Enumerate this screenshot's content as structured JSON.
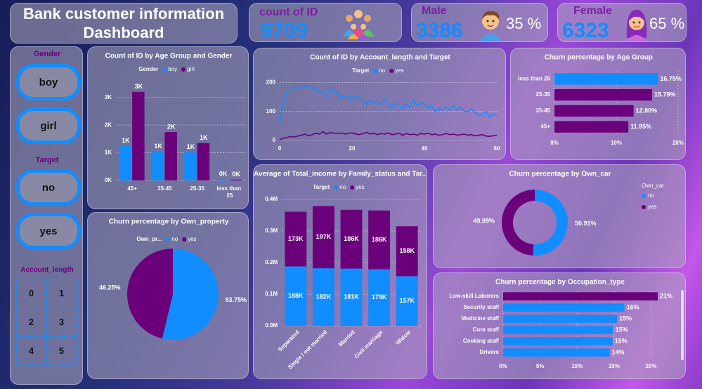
{
  "header": {
    "title": "Bank customer information Dashboard"
  },
  "kpis": [
    {
      "label": "count of ID",
      "value": 9709
    },
    {
      "label": "Male",
      "value": 3386,
      "pct": "35 %"
    },
    {
      "label": "Female",
      "value": 6323,
      "pct": "65 %"
    }
  ],
  "slicers": [
    {
      "title": "Gender",
      "options": [
        "boy",
        "girl"
      ]
    },
    {
      "title": "Target",
      "options": [
        "no",
        "yes"
      ]
    },
    {
      "title": "Account_length",
      "options": [
        "0",
        "1",
        "2",
        "3",
        "4",
        "5"
      ]
    }
  ],
  "chart_data": [
    {
      "type": "bar",
      "title": "Count of ID by Age Group and Gender",
      "legend_title": "Gender",
      "categories": [
        "45+",
        "35-45",
        "25-35",
        "less than 25"
      ],
      "series": [
        {
          "name": "boy",
          "color": "#118dff",
          "values": [
            1250,
            1050,
            1020,
            50
          ],
          "value_labels": [
            "1K",
            "1K",
            "1K",
            "0K"
          ]
        },
        {
          "name": "girl",
          "color": "#6b007b",
          "values": [
            3200,
            1750,
            1350,
            30
          ],
          "value_labels": [
            "3K",
            "2K",
            "1K",
            "0K"
          ]
        }
      ],
      "ylim": [
        0,
        3500
      ],
      "yticks": [
        {
          "value": 0,
          "label": "0K"
        },
        {
          "value": 1000,
          "label": "1K"
        },
        {
          "value": 2000,
          "label": "2K"
        },
        {
          "value": 3000,
          "label": "3K"
        }
      ],
      "grid": true
    },
    {
      "type": "line",
      "title": "Count of ID by Account_length and Target",
      "legend_title": "Target",
      "x": [
        0,
        1,
        2,
        3,
        4,
        5,
        6,
        7,
        8,
        9,
        10,
        11,
        12,
        13,
        14,
        15,
        16,
        17,
        18,
        19,
        20,
        21,
        22,
        23,
        24,
        25,
        26,
        27,
        28,
        29,
        30,
        31,
        32,
        33,
        34,
        35,
        36,
        37,
        38,
        39,
        40,
        41,
        42,
        43,
        44,
        45,
        46,
        47,
        48,
        49,
        50,
        51,
        52,
        53,
        54,
        55,
        56,
        57,
        58,
        59,
        60
      ],
      "series": [
        {
          "name": "no",
          "color": "#118dff",
          "values": [
            60,
            130,
            165,
            175,
            185,
            180,
            190,
            185,
            190,
            175,
            185,
            165,
            170,
            150,
            180,
            165,
            165,
            150,
            155,
            150,
            140,
            155,
            145,
            135,
            125,
            140,
            130,
            135,
            125,
            145,
            125,
            115,
            130,
            120,
            110,
            125,
            115,
            140,
            120,
            130,
            125,
            110,
            120,
            100,
            110,
            105,
            115,
            105,
            120,
            105,
            115,
            100,
            100,
            110,
            95,
            85,
            90,
            100,
            80,
            90,
            85
          ]
        },
        {
          "name": "yes",
          "color": "#6b007b",
          "values": [
            2,
            8,
            10,
            14,
            12,
            15,
            18,
            22,
            16,
            20,
            25,
            22,
            30,
            22,
            28,
            25,
            24,
            26,
            22,
            25,
            26,
            22,
            20,
            24,
            28,
            22,
            25,
            20,
            24,
            22,
            26,
            20,
            22,
            25,
            18,
            24,
            20,
            22,
            18,
            24,
            22,
            25,
            20,
            22,
            18,
            20,
            24,
            20,
            22,
            18,
            20,
            22,
            18,
            20,
            16,
            18,
            20,
            15,
            14,
            16,
            18
          ]
        }
      ],
      "xlim": [
        0,
        60
      ],
      "xticks": [
        0,
        20,
        40,
        60
      ],
      "ylim": [
        0,
        230
      ],
      "yticks": [
        0,
        100,
        200
      ],
      "grid": true
    },
    {
      "type": "hbar",
      "title": "Churn percentage by Age Group",
      "categories": [
        "less than 25",
        "25-35",
        "35-45",
        "45+"
      ],
      "values": [
        16.75,
        15.79,
        12.8,
        11.95
      ],
      "value_labels": [
        "16.75%",
        "15.79%",
        "12.80%",
        "11.95%"
      ],
      "colors": [
        "#118dff",
        "#6b007b",
        "#6b007b",
        "#6b007b"
      ],
      "xlim": [
        0,
        20
      ],
      "xticks": [
        {
          "value": 0,
          "label": "0%"
        },
        {
          "value": 10,
          "label": "10%"
        },
        {
          "value": 20,
          "label": "20%"
        }
      ],
      "grid": true
    },
    {
      "type": "stacked_bar",
      "title": "Average of Total_income by Family_status and Tar...",
      "legend_title": "Target",
      "categories": [
        "Separated",
        "Single / not married",
        "Married",
        "Civil marriage",
        "Widow"
      ],
      "series": [
        {
          "name": "no",
          "color": "#118dff",
          "values": [
            188000,
            182000,
            181000,
            179000,
            157000
          ],
          "value_labels": [
            "188K",
            "182K",
            "181K",
            "179K",
            "157K"
          ]
        },
        {
          "name": "yes",
          "color": "#6b007b",
          "values": [
            173000,
            197000,
            186000,
            186000,
            158000
          ],
          "value_labels": [
            "173K",
            "197K",
            "186K",
            "186K",
            "158K"
          ]
        }
      ],
      "ylim": [
        0,
        400000
      ],
      "yticks": [
        {
          "value": 0,
          "label": "0.0M"
        },
        {
          "value": 100000,
          "label": "0.1M"
        },
        {
          "value": 200000,
          "label": "0.2M"
        },
        {
          "value": 300000,
          "label": "0.3M"
        },
        {
          "value": 400000,
          "label": "0.4M"
        }
      ],
      "grid": true
    },
    {
      "type": "donut",
      "title": "Churn percentage by Own_car",
      "legend_title": "Own_car",
      "categories": [
        "no",
        "yes"
      ],
      "values": [
        50.91,
        49.09
      ],
      "value_labels": [
        "50.91%",
        "49.09%"
      ],
      "colors": [
        "#118dff",
        "#6b007b"
      ]
    },
    {
      "type": "pie",
      "title": "Churn percentage by Own_property",
      "legend_title": "Own_pr...",
      "categories": [
        "no",
        "yes"
      ],
      "values": [
        53.75,
        46.25
      ],
      "value_labels": [
        "53.75%",
        "46.25%"
      ],
      "colors": [
        "#118dff",
        "#6b007b"
      ]
    },
    {
      "type": "hbar",
      "title": "Churn percentage by Occupation_type",
      "categories": [
        "Low-skill Laborers",
        "Security staff",
        "Medicine staff",
        "Core staff",
        "Cooking staff",
        "Drivers"
      ],
      "values": [
        20.9,
        16.4,
        15.4,
        14.9,
        14.8,
        14.4
      ],
      "value_labels": [
        "21%",
        "16%",
        "15%",
        "15%",
        "15%",
        "14%"
      ],
      "colors": [
        "#6b007b",
        "#118dff",
        "#118dff",
        "#118dff",
        "#118dff",
        "#118dff"
      ],
      "xlim": [
        0,
        21
      ],
      "xticks": [
        {
          "value": 0,
          "label": "0%"
        },
        {
          "value": 5,
          "label": "5%"
        },
        {
          "value": 10,
          "label": "10%"
        },
        {
          "value": 15,
          "label": "15%"
        },
        {
          "value": 20,
          "label": "20%"
        }
      ],
      "grid": true
    }
  ]
}
